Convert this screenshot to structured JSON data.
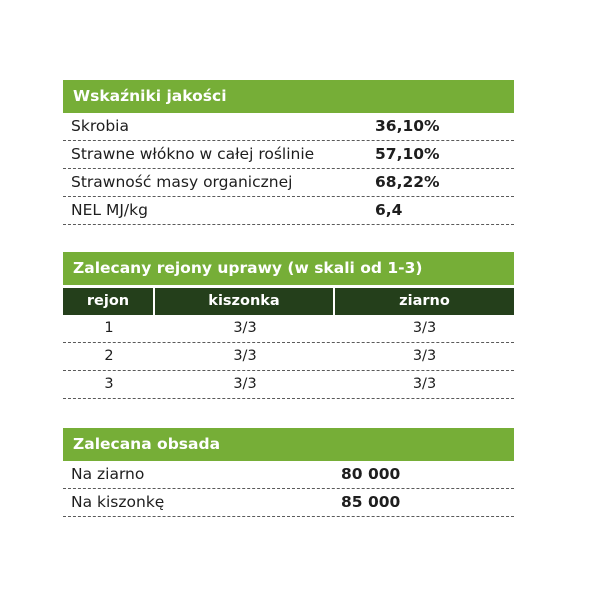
{
  "quality": {
    "title": "Wskaźniki jakości",
    "rows": [
      {
        "label": "Skrobia",
        "value": "36,10%"
      },
      {
        "label": "Strawne włókno w całej roślinie",
        "value": "57,10%"
      },
      {
        "label": "Strawność masy organicznej",
        "value": "68,22%"
      },
      {
        "label": "NEL MJ/kg",
        "value": "6,4"
      }
    ]
  },
  "regions": {
    "title": "Zalecany rejony uprawy (w skali od 1-3)",
    "columns": [
      "rejon",
      "kiszonka",
      "ziarno"
    ],
    "rows": [
      [
        "1",
        "3/3",
        "3/3"
      ],
      [
        "2",
        "3/3",
        "3/3"
      ],
      [
        "3",
        "3/3",
        "3/3"
      ]
    ]
  },
  "density": {
    "title": "Zalecana obsada",
    "rows": [
      {
        "label": "Na ziarno",
        "value": "80 000"
      },
      {
        "label": "Na kiszonkę",
        "value": "85 000"
      }
    ]
  },
  "colors": {
    "header_green": "#76ae37",
    "column_header_dark": "#243f1b"
  }
}
